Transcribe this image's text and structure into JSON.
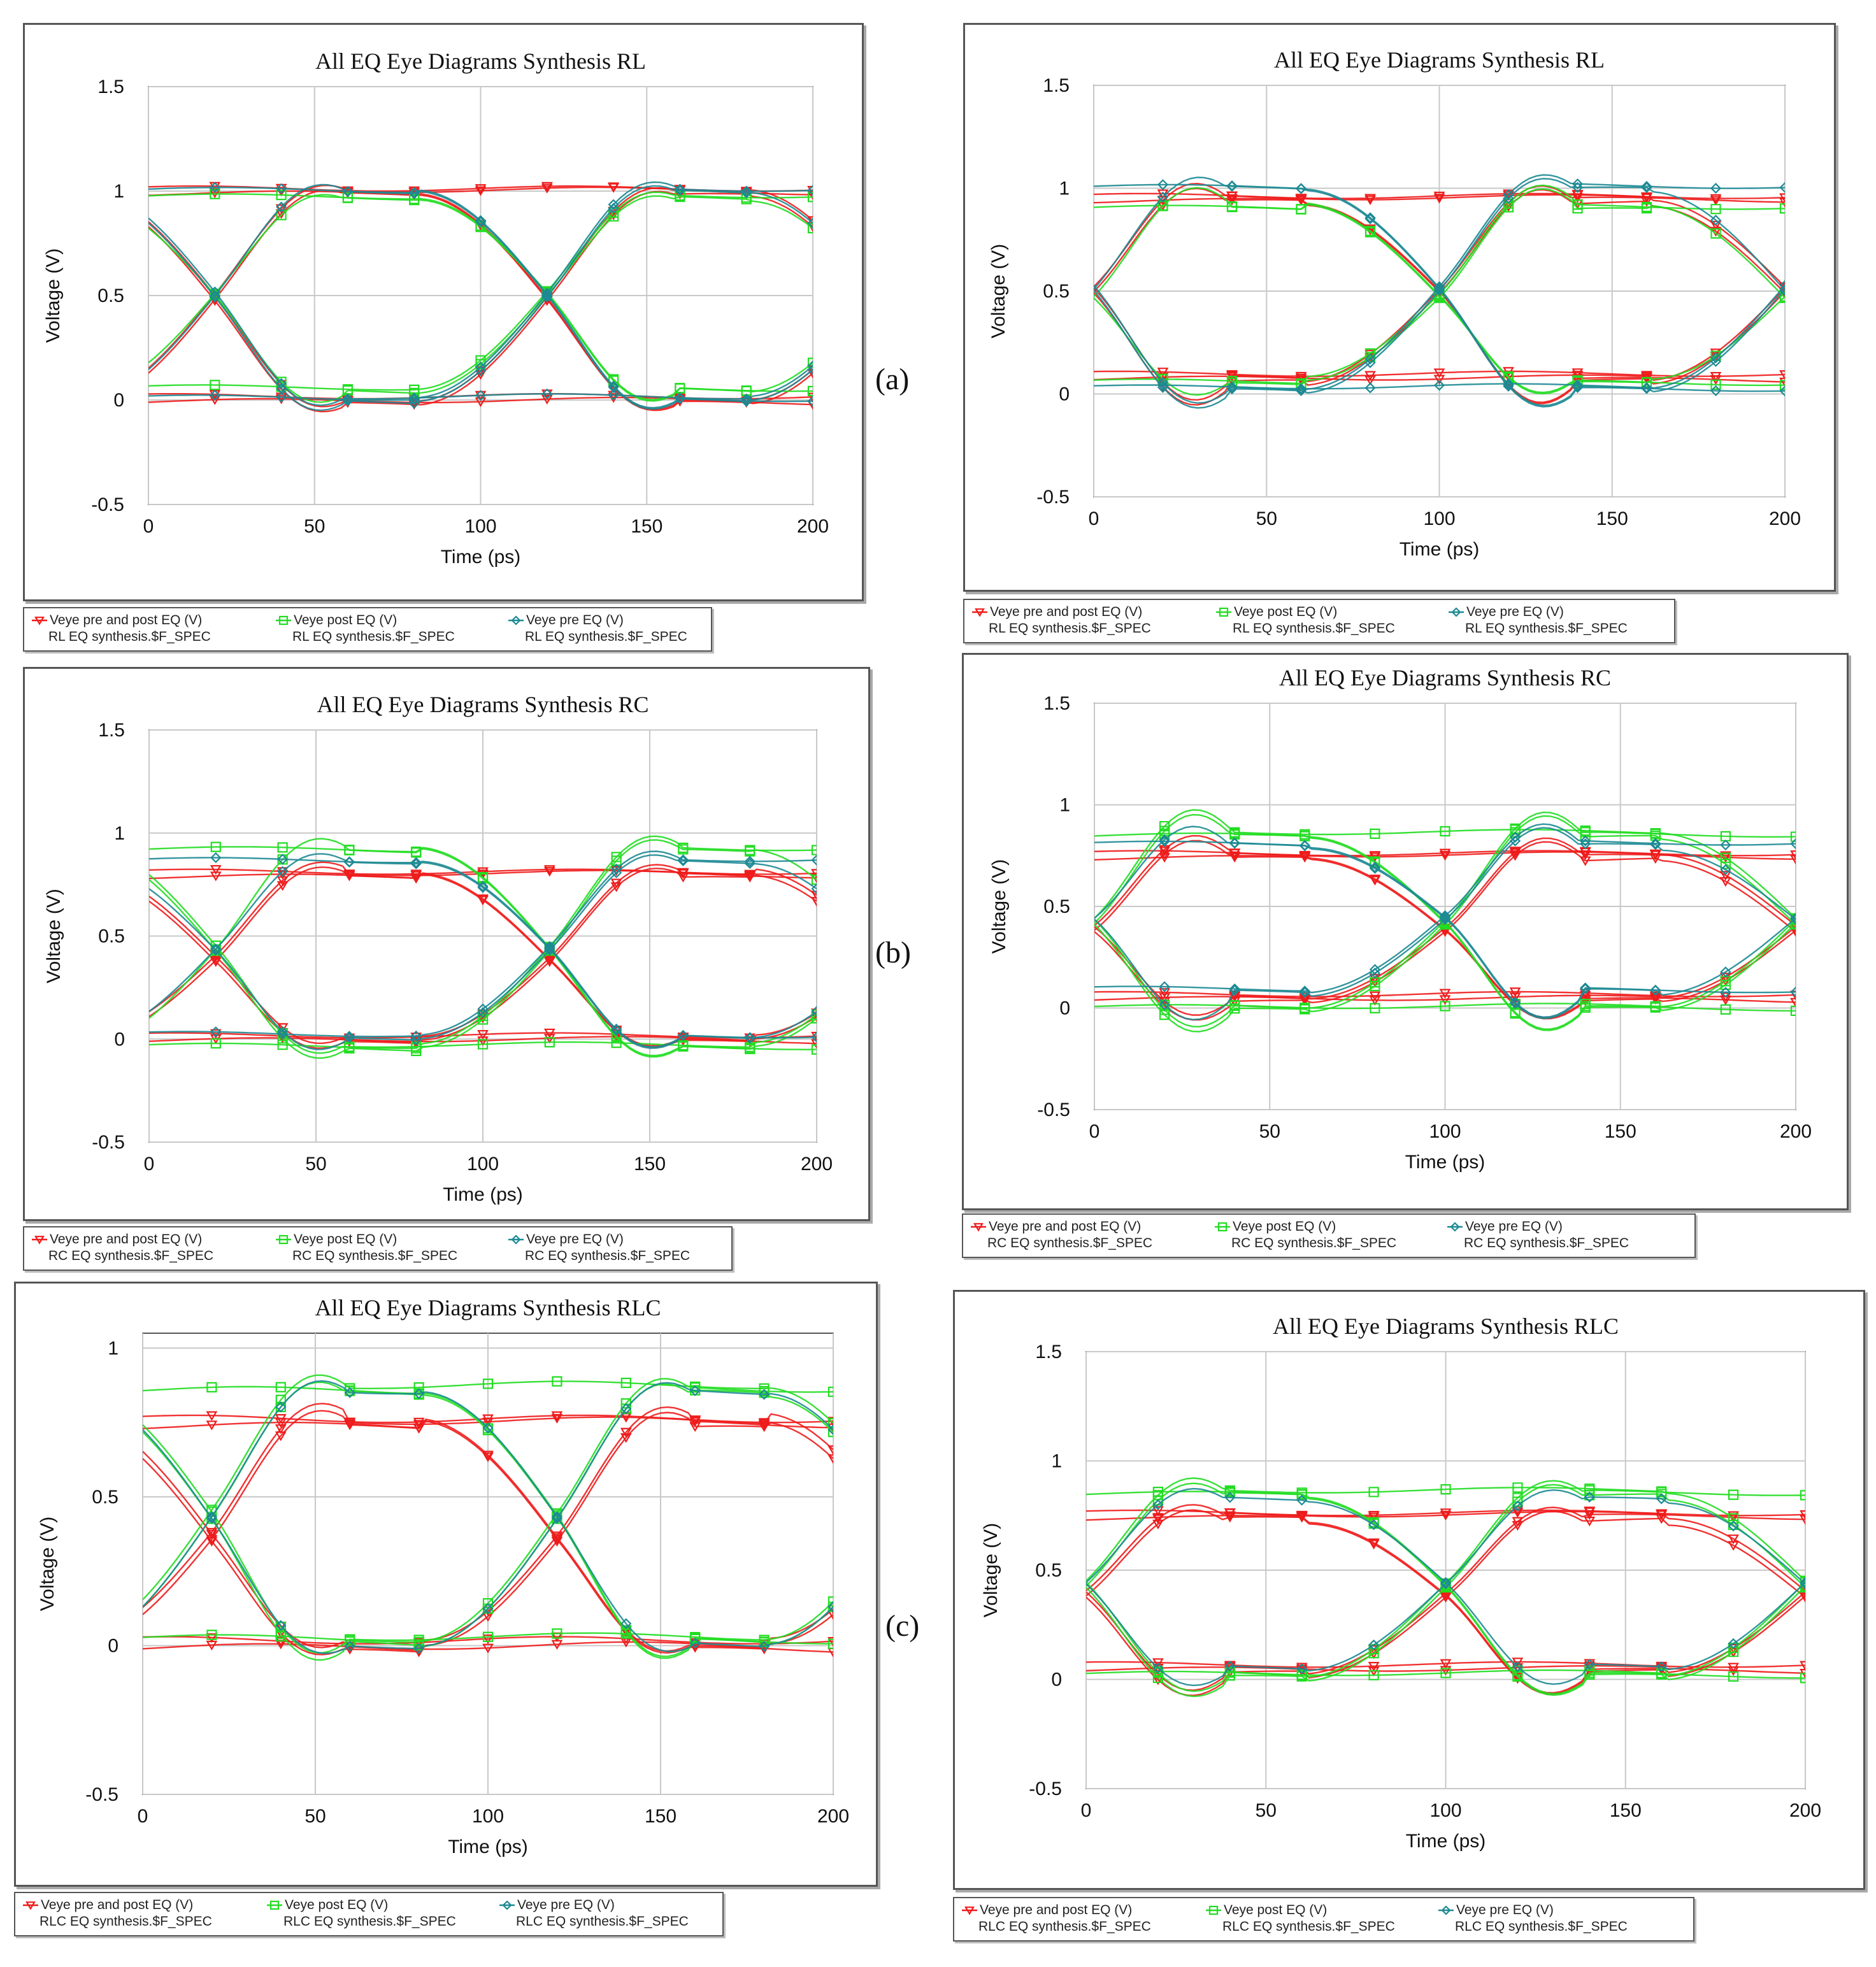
{
  "colors": {
    "both": "#ee1c1c",
    "post": "#22dd22",
    "pre": "#1d8a94",
    "grid": "#c8c8c8",
    "plot_border": "#555555"
  },
  "panel_tags": [
    "(a)",
    "(b)",
    "(c)"
  ],
  "chart_data": [
    {
      "id": "a-left",
      "type": "line",
      "title": "All EQ Eye Diagrams Synthesis RL",
      "xlabel": "Time (ps)",
      "ylabel": "Voltage (V)",
      "xlim": [
        0,
        200
      ],
      "ylim": [
        -0.5,
        1.5
      ],
      "xticks": [
        0,
        50,
        100,
        150,
        200
      ],
      "yticks": [
        -0.5,
        0,
        0.5,
        1,
        1.5
      ],
      "ytick_labels": [
        "-0.5",
        "0",
        "0.5",
        "1",
        "1.5"
      ],
      "unit_interval_ps": 100,
      "crossings_ps": [
        20,
        120
      ],
      "eye_center_ps": [
        60,
        160
      ],
      "series": [
        {
          "name": "Veye pre and post EQ (V)",
          "sub": "RL EQ synthesis.$F_SPEC",
          "key": "both",
          "marker": "triangle",
          "high": 1.0,
          "low": 0.0,
          "peak": 1.08,
          "trough": -0.1,
          "cross": 0.5,
          "traces": 8
        },
        {
          "name": "Veye post EQ (V)",
          "sub": "RL EQ synthesis.$F_SPEC",
          "key": "post",
          "marker": "square",
          "high": 0.97,
          "low": 0.05,
          "peak": 1.05,
          "trough": -0.07,
          "cross": 0.5,
          "traces": 4
        },
        {
          "name": "Veye pre EQ (V)",
          "sub": "RL EQ synthesis.$F_SPEC",
          "key": "pre",
          "marker": "diamond",
          "high": 1.0,
          "low": 0.0,
          "peak": 1.1,
          "trough": -0.12,
          "cross": 0.5,
          "traces": 5
        }
      ]
    },
    {
      "id": "a-right",
      "type": "line",
      "title": "All EQ Eye Diagrams Synthesis RL",
      "xlabel": "Time (ps)",
      "ylabel": "Voltage (V)",
      "xlim": [
        0,
        200
      ],
      "ylim": [
        -0.5,
        1.5
      ],
      "xticks": [
        0,
        50,
        100,
        150,
        200
      ],
      "yticks": [
        -0.5,
        0,
        0.5,
        1,
        1.5
      ],
      "ytick_labels": [
        "-0.5",
        "0",
        "0.5",
        "1",
        "1.5"
      ],
      "unit_interval_ps": 100,
      "crossings_ps": [
        0,
        100,
        200
      ],
      "eye_center_ps": [
        60,
        160
      ],
      "series": [
        {
          "name": "Veye pre and post EQ (V)",
          "sub": "RL EQ synthesis.$F_SPEC",
          "key": "both",
          "marker": "triangle",
          "high": 0.95,
          "low": 0.08,
          "peak": 1.12,
          "trough": -0.12,
          "cross": 0.5,
          "traces": 8
        },
        {
          "name": "Veye post EQ (V)",
          "sub": "RL EQ synthesis.$F_SPEC",
          "key": "post",
          "marker": "square",
          "high": 0.9,
          "low": 0.05,
          "peak": 1.08,
          "trough": -0.1,
          "cross": 0.5,
          "traces": 4
        },
        {
          "name": "Veye pre EQ (V)",
          "sub": "RL EQ synthesis.$F_SPEC",
          "key": "pre",
          "marker": "diamond",
          "high": 1.0,
          "low": 0.02,
          "peak": 1.15,
          "trough": -0.15,
          "cross": 0.5,
          "traces": 5
        }
      ]
    },
    {
      "id": "b-left",
      "type": "line",
      "title": "All EQ Eye Diagrams Synthesis RC",
      "xlabel": "Time (ps)",
      "ylabel": "Voltage (V)",
      "xlim": [
        0,
        200
      ],
      "ylim": [
        -0.5,
        1.5
      ],
      "xticks": [
        0,
        50,
        100,
        150,
        200
      ],
      "yticks": [
        -0.5,
        0,
        0.5,
        1,
        1.5
      ],
      "ytick_labels": [
        "-0.5",
        "0",
        "0.5",
        "1",
        "1.5"
      ],
      "unit_interval_ps": 100,
      "crossings_ps": [
        20,
        120
      ],
      "eye_center_ps": [
        60,
        160
      ],
      "series": [
        {
          "name": "Veye pre and post EQ (V)",
          "sub": "RC EQ synthesis.$F_SPEC",
          "key": "both",
          "marker": "triangle",
          "high": 0.8,
          "low": 0.0,
          "peak": 0.9,
          "trough": -0.1,
          "cross": 0.42,
          "traces": 8
        },
        {
          "name": "Veye post EQ (V)",
          "sub": "RC EQ synthesis.$F_SPEC",
          "key": "post",
          "marker": "square",
          "high": 0.92,
          "low": -0.04,
          "peak": 1.05,
          "trough": -0.17,
          "cross": 0.45,
          "traces": 5
        },
        {
          "name": "Veye pre EQ (V)",
          "sub": "RC EQ synthesis.$F_SPEC",
          "key": "pre",
          "marker": "diamond",
          "high": 0.86,
          "low": 0.01,
          "peak": 0.97,
          "trough": -0.12,
          "cross": 0.43,
          "traces": 4
        }
      ]
    },
    {
      "id": "b-right",
      "type": "line",
      "title": "All EQ Eye Diagrams Synthesis RC",
      "xlabel": "Time (ps)",
      "ylabel": "Voltage (V)",
      "xlim": [
        0,
        200
      ],
      "ylim": [
        -0.5,
        1.5
      ],
      "xticks": [
        0,
        50,
        100,
        150,
        200
      ],
      "yticks": [
        -0.5,
        0,
        0.5,
        1,
        1.5
      ],
      "ytick_labels": [
        "-0.5",
        "0",
        "0.5",
        "1",
        "1.5"
      ],
      "unit_interval_ps": 100,
      "crossings_ps": [
        0,
        100,
        200
      ],
      "eye_center_ps": [
        60,
        160
      ],
      "series": [
        {
          "name": "Veye pre and post EQ (V)",
          "sub": "RC EQ synthesis.$F_SPEC",
          "key": "both",
          "marker": "triangle",
          "high": 0.75,
          "low": 0.05,
          "peak": 0.93,
          "trough": -0.12,
          "cross": 0.4,
          "traces": 8
        },
        {
          "name": "Veye post EQ (V)",
          "sub": "RC EQ synthesis.$F_SPEC",
          "key": "post",
          "marker": "square",
          "high": 0.85,
          "low": 0.0,
          "peak": 1.07,
          "trough": -0.2,
          "cross": 0.42,
          "traces": 6
        },
        {
          "name": "Veye pre EQ (V)",
          "sub": "RC EQ synthesis.$F_SPEC",
          "key": "pre",
          "marker": "diamond",
          "high": 0.8,
          "low": 0.08,
          "peak": 1.0,
          "trough": -0.14,
          "cross": 0.42,
          "traces": 4
        }
      ]
    },
    {
      "id": "c-left",
      "type": "line",
      "title": "All EQ Eye Diagrams Synthesis RLC",
      "xlabel": "Time (ps)",
      "ylabel": "Voltage (V)",
      "xlim": [
        0,
        200
      ],
      "ylim": [
        -0.5,
        1.05
      ],
      "xticks": [
        0,
        50,
        100,
        150,
        200
      ],
      "yticks": [
        -0.5,
        0,
        0.5,
        1
      ],
      "ytick_labels": [
        "-0.5",
        "0",
        "0.5",
        "1"
      ],
      "unit_interval_ps": 100,
      "crossings_ps": [
        20,
        120
      ],
      "eye_center_ps": [
        60,
        160
      ],
      "series": [
        {
          "name": "Veye pre and post EQ (V)",
          "sub": "RLC EQ synthesis.$F_SPEC",
          "key": "both",
          "marker": "triangle",
          "high": 0.75,
          "low": 0.0,
          "peak": 0.85,
          "trough": -0.08,
          "cross": 0.4,
          "traces": 8
        },
        {
          "name": "Veye post EQ (V)",
          "sub": "RLC EQ synthesis.$F_SPEC",
          "key": "post",
          "marker": "square",
          "high": 0.86,
          "low": 0.02,
          "peak": 0.97,
          "trough": -0.1,
          "cross": 0.43,
          "traces": 6
        },
        {
          "name": "Veye pre EQ (V)",
          "sub": "RLC EQ synthesis.$F_SPEC",
          "key": "pre",
          "marker": "diamond",
          "high": 0.85,
          "low": 0.0,
          "peak": 0.95,
          "trough": -0.08,
          "cross": 0.42,
          "traces": 2
        }
      ]
    },
    {
      "id": "c-right",
      "type": "line",
      "title": "All EQ Eye Diagrams Synthesis RLC",
      "xlabel": "Time (ps)",
      "ylabel": "Voltage (V)",
      "xlim": [
        0,
        200
      ],
      "ylim": [
        -0.5,
        1.5
      ],
      "xticks": [
        0,
        50,
        100,
        150,
        200
      ],
      "yticks": [
        -0.5,
        0,
        0.5,
        1,
        1.5
      ],
      "ytick_labels": [
        "-0.5",
        "0",
        "0.5",
        "1",
        "1.5"
      ],
      "unit_interval_ps": 100,
      "crossings_ps": [
        0,
        100,
        200
      ],
      "eye_center_ps": [
        60,
        160
      ],
      "series": [
        {
          "name": "Veye pre and post EQ (V)",
          "sub": "RLC EQ synthesis.$F_SPEC",
          "key": "both",
          "marker": "triangle",
          "high": 0.75,
          "low": 0.05,
          "peak": 0.88,
          "trough": -0.12,
          "cross": 0.38,
          "traces": 8
        },
        {
          "name": "Veye post EQ (V)",
          "sub": "RLC EQ synthesis.$F_SPEC",
          "key": "post",
          "marker": "square",
          "high": 0.85,
          "low": 0.02,
          "peak": 1.0,
          "trough": -0.14,
          "cross": 0.42,
          "traces": 6
        },
        {
          "name": "Veye pre EQ (V)",
          "sub": "RLC EQ synthesis.$F_SPEC",
          "key": "pre",
          "marker": "diamond",
          "high": 0.82,
          "low": 0.05,
          "peak": 0.95,
          "trough": -0.1,
          "cross": 0.42,
          "traces": 2
        }
      ]
    }
  ]
}
